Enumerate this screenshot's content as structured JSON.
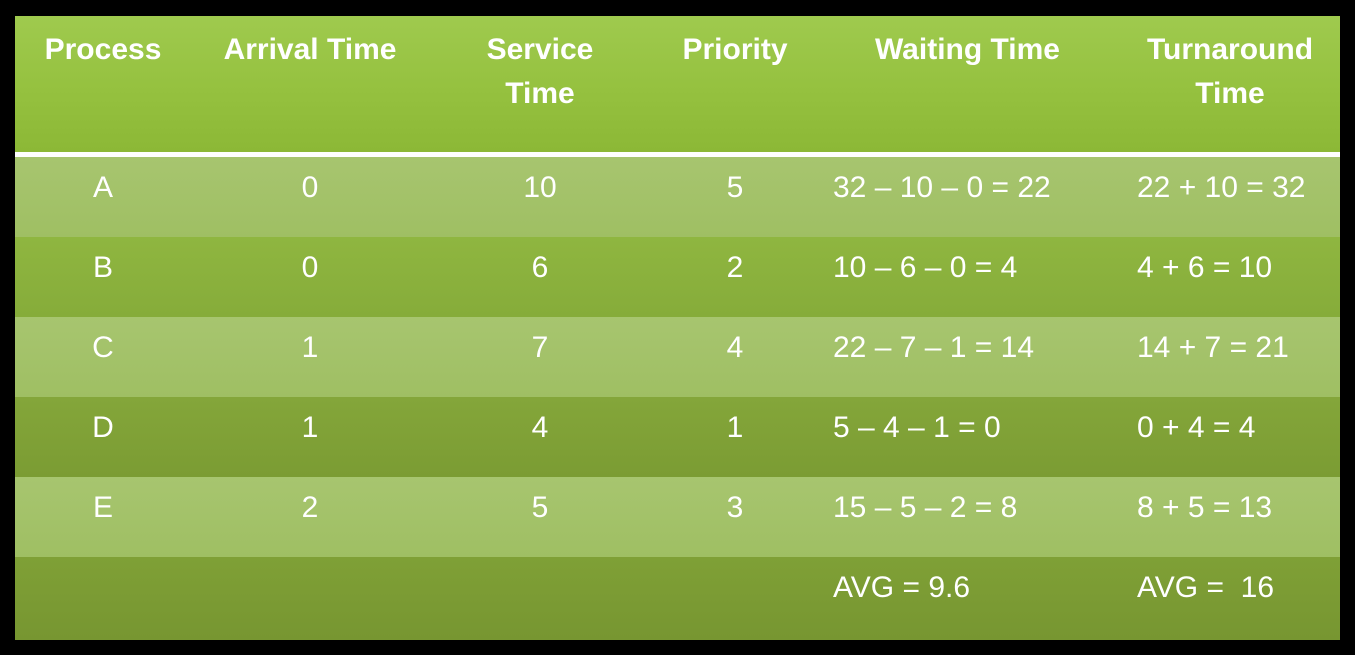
{
  "table": {
    "headers": {
      "process": "Process",
      "arrival": "Arrival Time",
      "service_line1": "Service",
      "service_line2": "Time",
      "priority": "Priority",
      "waiting": "Waiting Time",
      "turnaround_line1": "Turnaround",
      "turnaround_line2": "Time"
    },
    "rows": [
      {
        "process": "A",
        "arrival": "0",
        "service": "10",
        "priority": "5",
        "waiting": "32 – 10 – 0 = 22",
        "turnaround": "22 + 10 = 32"
      },
      {
        "process": "B",
        "arrival": "0",
        "service": "6",
        "priority": "2",
        "waiting": "10 – 6 – 0 = 4",
        "turnaround": "4 + 6 = 10"
      },
      {
        "process": "C",
        "arrival": "1",
        "service": "7",
        "priority": "4",
        "waiting": "22 – 7 – 1 = 14",
        "turnaround": "14 + 7 = 21"
      },
      {
        "process": "D",
        "arrival": "1",
        "service": "4",
        "priority": "1",
        "waiting": "5 – 4 – 1 = 0",
        "turnaround": "0 + 4 = 4"
      },
      {
        "process": "E",
        "arrival": "2",
        "service": "5",
        "priority": "3",
        "waiting": "15 – 5 – 2 = 8",
        "turnaround": "8 + 5 = 13"
      }
    ],
    "summary": {
      "waiting_avg": "AVG = 9.6",
      "turnaround_avg": "AVG =  16"
    }
  },
  "colors": {
    "header_green": "#95c13f",
    "row_light": "#a3c269",
    "row_mid": "#8bb13d",
    "row_dark": "#80a137",
    "border": "#000000",
    "text": "#ffffff"
  }
}
